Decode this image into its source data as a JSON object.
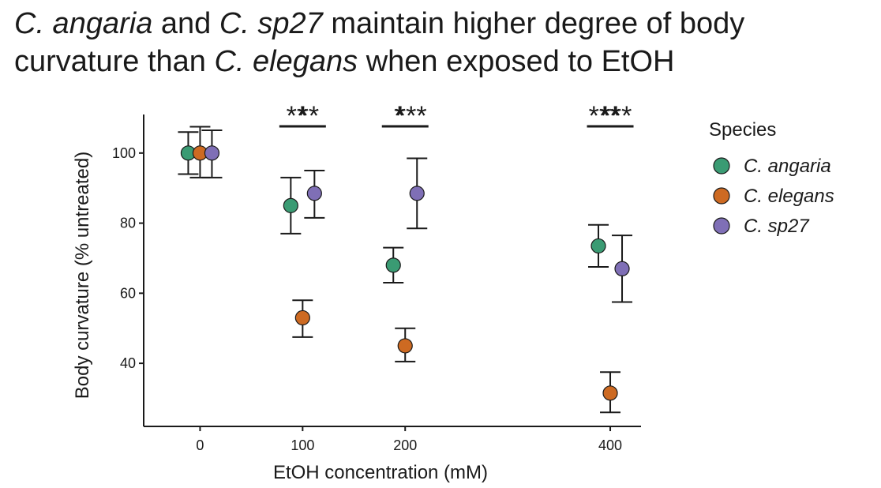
{
  "title": {
    "parts": [
      {
        "text": "C. angaria",
        "italic": true
      },
      {
        "text": " and ",
        "italic": false
      },
      {
        "text": "C. sp27",
        "italic": true
      },
      {
        "text": " maintain higher degree of body curvature than ",
        "italic": false
      },
      {
        "text": "C. elegans",
        "italic": true
      },
      {
        "text": " when exposed to EtOH",
        "italic": false
      }
    ]
  },
  "chart_data": {
    "type": "scatter",
    "xlabel": "EtOH concentration (mM)",
    "ylabel": "Body curvature (% untreated)",
    "categories": [
      "0",
      "100",
      "200",
      "400"
    ],
    "category_positions": [
      0,
      100,
      200,
      400
    ],
    "xlim": [
      -55,
      430
    ],
    "ylim": [
      22,
      111
    ],
    "yticks": [
      40,
      60,
      80,
      100
    ],
    "grid": false,
    "legend": {
      "title": "Species",
      "placement": "right"
    },
    "series": [
      {
        "name": "C. angaria",
        "color": "#3a9b73",
        "dodge": -1,
        "values": [
          100,
          85,
          68,
          73.5
        ],
        "err_low": [
          94,
          77,
          63,
          67.5
        ],
        "err_high": [
          106,
          93,
          73,
          79.5
        ]
      },
      {
        "name": "C. elegans",
        "color": "#cd6a22",
        "dodge": 0,
        "values": [
          100,
          53,
          45,
          31.5
        ],
        "err_low": [
          93,
          47.5,
          40.5,
          26
        ],
        "err_high": [
          107.5,
          58,
          50,
          37.5
        ]
      },
      {
        "name": "C. sp27",
        "color": "#7f6fb6",
        "dodge": 1,
        "values": [
          100,
          88.5,
          88.5,
          67
        ],
        "err_low": [
          93,
          81.5,
          78.5,
          57.5
        ],
        "err_high": [
          106.5,
          95,
          98.5,
          76.5
        ]
      }
    ],
    "significance": [
      {
        "label": "**",
        "category": "100",
        "from_dodge": -1,
        "to_dodge": 0
      },
      {
        "label": "**",
        "category": "100",
        "from_dodge": 0,
        "to_dodge": 1
      },
      {
        "label": "*",
        "category": "200",
        "from_dodge": -1,
        "to_dodge": 0
      },
      {
        "label": "***",
        "category": "200",
        "from_dodge": 0,
        "to_dodge": 1
      },
      {
        "label": "***",
        "category": "400",
        "from_dodge": -1,
        "to_dodge": 0
      },
      {
        "label": "***",
        "category": "400",
        "from_dodge": 0,
        "to_dodge": 1
      }
    ]
  }
}
